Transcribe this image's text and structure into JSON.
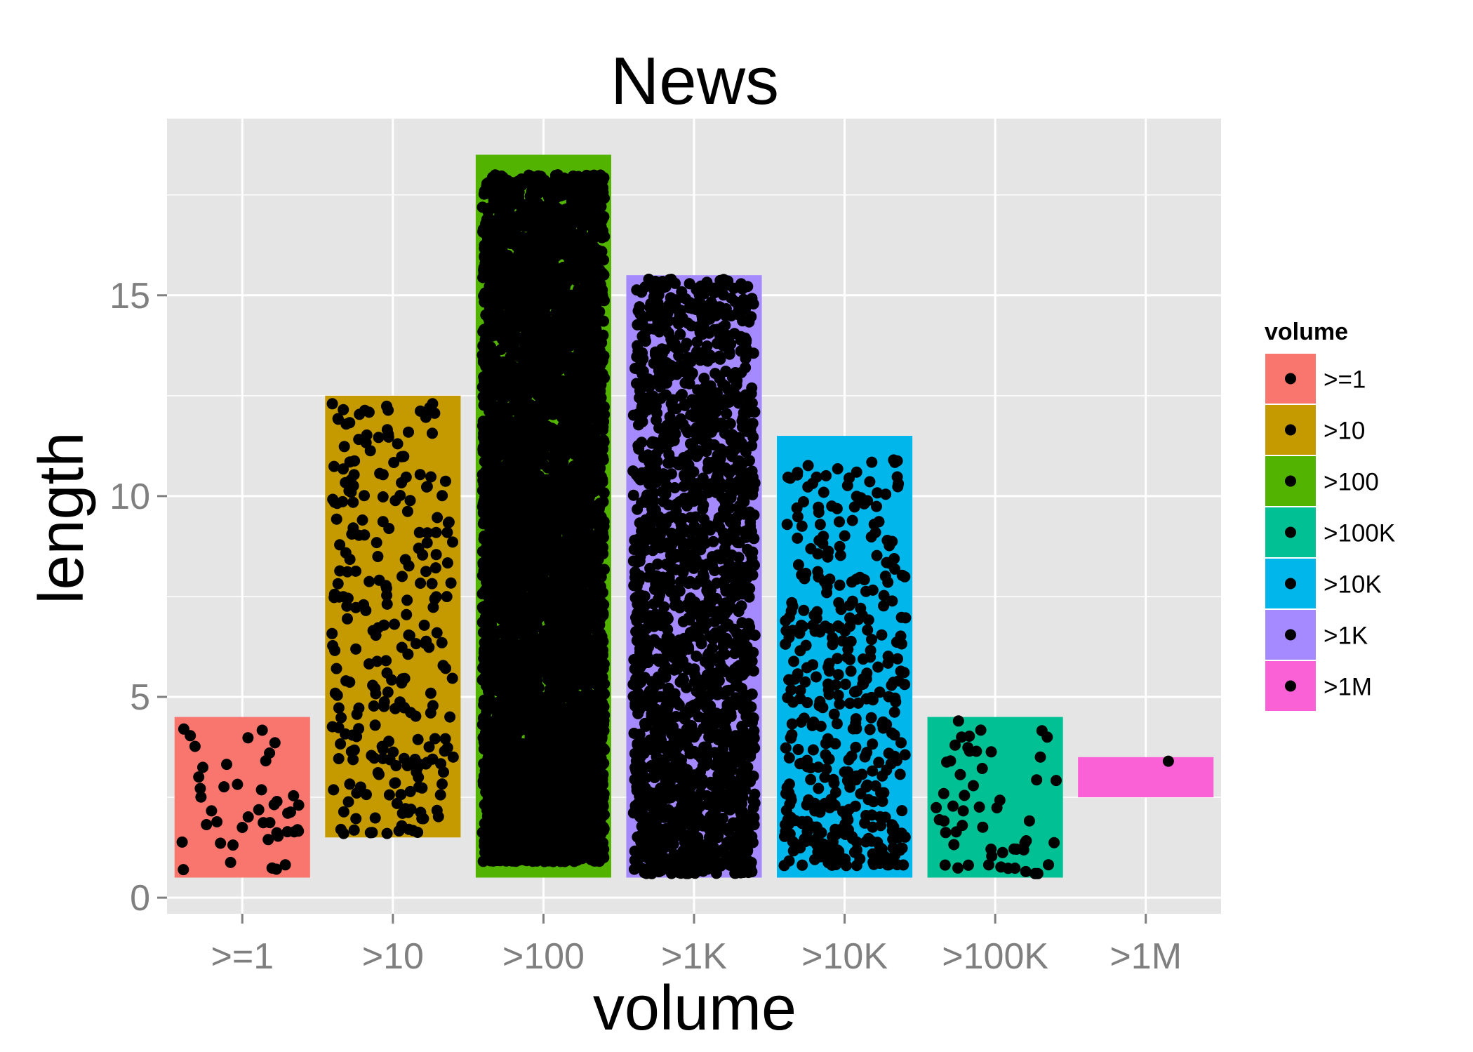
{
  "chart_data": {
    "type": "bar",
    "title": "News",
    "xlabel": "volume",
    "ylabel": "length",
    "categories": [
      ">=1",
      ">10",
      ">100",
      ">1K",
      ">10K",
      ">100K",
      ">1M"
    ],
    "bars": [
      {
        "category": ">=1",
        "ymin": 0.5,
        "ymax": 4.5,
        "color": "#F8766D"
      },
      {
        "category": ">10",
        "ymin": 1.5,
        "ymax": 12.5,
        "color": "#C49A00"
      },
      {
        "category": ">100",
        "ymin": 0.5,
        "ymax": 18.5,
        "color": "#53B400"
      },
      {
        "category": ">1K",
        "ymin": 0.5,
        "ymax": 15.5,
        "color": "#A58AFF"
      },
      {
        "category": ">10K",
        "ymin": 0.5,
        "ymax": 11.5,
        "color": "#00B6EB"
      },
      {
        "category": ">100K",
        "ymin": 0.5,
        "ymax": 4.5,
        "color": "#00C094"
      },
      {
        "category": ">1M",
        "ymin": 2.5,
        "ymax": 3.5,
        "color": "#FB61D7"
      }
    ],
    "points_summary": [
      {
        "category": ">=1",
        "count": 45,
        "min": 0.7,
        "max": 4.2
      },
      {
        "category": ">10",
        "count": 260,
        "min": 1.6,
        "max": 12.3
      },
      {
        "category": ">100",
        "count": 5000,
        "min": 0.9,
        "max": 18.0
      },
      {
        "category": ">1K",
        "count": 1800,
        "min": 0.6,
        "max": 15.4
      },
      {
        "category": ">10K",
        "count": 420,
        "min": 0.8,
        "max": 10.9
      },
      {
        "category": ">100K",
        "count": 55,
        "min": 0.6,
        "max": 4.4
      },
      {
        "category": ">1M",
        "count": 1,
        "min": 3.4,
        "max": 3.4
      }
    ],
    "point_color": "#000000",
    "yticks": [
      0,
      5,
      10,
      15
    ],
    "ylim": [
      -0.4,
      19.4
    ],
    "grid": true,
    "legend": {
      "title": "volume",
      "position": "right",
      "items": [
        {
          "label": ">=1",
          "color": "#F8766D"
        },
        {
          "label": ">10",
          "color": "#C49A00"
        },
        {
          "label": ">100",
          "color": "#53B400"
        },
        {
          "label": ">100K",
          "color": "#00C094"
        },
        {
          "label": ">10K",
          "color": "#00B6EB"
        },
        {
          "label": ">1K",
          "color": "#A58AFF"
        },
        {
          "label": ">1M",
          "color": "#FB61D7"
        }
      ]
    },
    "panel_color": "#E5E5E5",
    "grid_color": "#FFFFFF"
  }
}
